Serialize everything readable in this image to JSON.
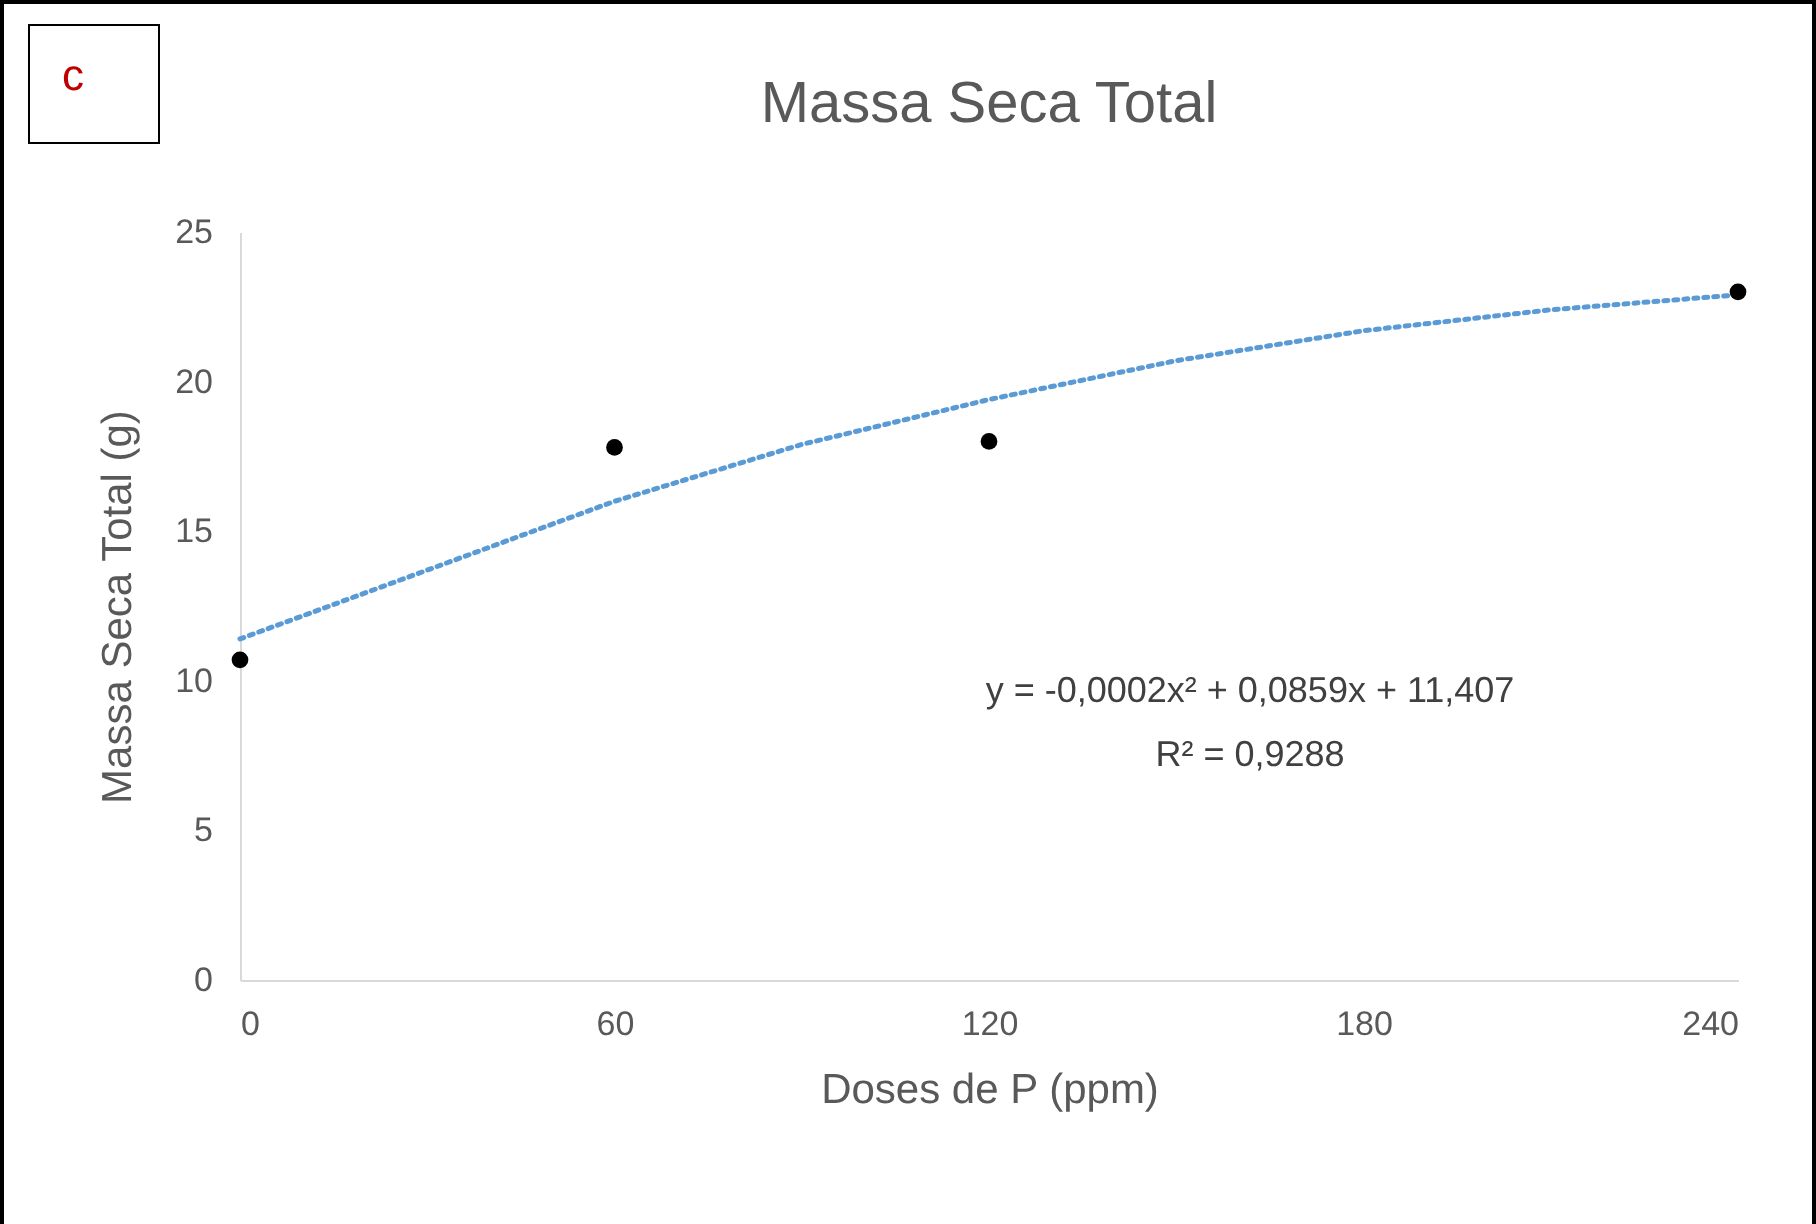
{
  "chart_data": {
    "type": "scatter",
    "title": "Massa Seca Total",
    "xlabel": "Doses de P (ppm)",
    "ylabel": "Massa Seca Total (g)",
    "annotations": [
      "c",
      "y = -0,0002x² + 0,0859x + 11,407",
      "R² = 0,9288"
    ],
    "x": [
      0,
      60,
      120,
      240
    ],
    "series": [
      {
        "color": "#000000",
        "values": [
          10.7,
          17.8,
          18.0,
          23.0
        ]
      },
      {
        "type": "line",
        "color": "#5b9bd5",
        "line_style": "dotted",
        "marker": "none",
        "x": [
          0,
          30,
          60,
          90,
          120,
          150,
          180,
          210,
          240
        ],
        "values": [
          11.4,
          13.7,
          16.0,
          17.9,
          19.4,
          20.7,
          21.7,
          22.4,
          22.9
        ]
      }
    ],
    "marker": "circle",
    "grid": false,
    "xlim": [
      0,
      240
    ],
    "xticks": [
      0,
      60,
      120,
      180,
      240
    ],
    "ylim": [
      0,
      25
    ],
    "yticks": [
      0,
      5,
      10,
      15,
      20,
      25
    ]
  }
}
